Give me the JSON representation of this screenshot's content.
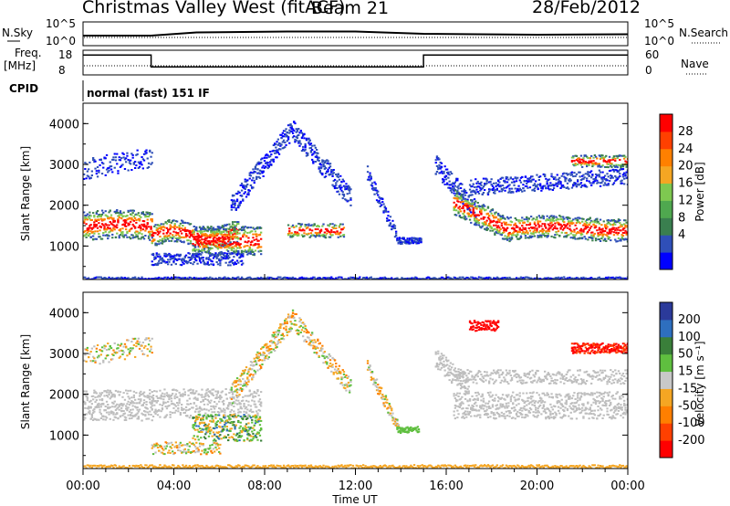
{
  "header": {
    "title": "Christmas Valley West (fitACF)",
    "beam": "Beam 21",
    "date": "28/Feb/2012"
  },
  "strip_labels": {
    "nsky": "N.Sky",
    "nsky_ticks": [
      "10^5",
      "10^0"
    ],
    "nsearch": "N.Search",
    "nsearch_ticks": [
      "10^5",
      "10^0"
    ],
    "freq": "Freq.",
    "freq_unit": "[MHz]",
    "freq_ticks": [
      "18",
      "8"
    ],
    "nave": "Nave",
    "nave_ticks": [
      "60",
      "0"
    ],
    "cpid": "CPID",
    "cpid_text": "normal (fast) 151 IF"
  },
  "colors": {
    "power_scale": [
      "#0000ff",
      "#2f4fb8",
      "#3a7f4f",
      "#4fa84f",
      "#7ec850",
      "#f5a623",
      "#ff8000",
      "#ff4000",
      "#ff0000"
    ],
    "velocity_scale": [
      "#2b3a9a",
      "#2e6fbf",
      "#3a7f3a",
      "#5fbf3f",
      "#c8c8c8",
      "#f5a623",
      "#ff7f00",
      "#ff4000",
      "#ff0000"
    ],
    "ground_scatter": "#bebebe"
  },
  "chart_data": [
    {
      "type": "line",
      "title": "",
      "xlabel": "",
      "ylabel": "N.Sky",
      "x": [
        "00:00",
        "03:00",
        "05:00",
        "09:00",
        "12:00",
        "15:00",
        "20:00",
        "24:00"
      ],
      "series": [
        {
          "values": [
            2,
            2,
            2.7,
            2.9,
            2.9,
            2.4,
            2.2,
            2.3
          ]
        }
      ],
      "ylim": [
        0,
        5
      ]
    },
    {
      "type": "line",
      "title": "",
      "xlabel": "",
      "ylabel": "Freq. [MHz]",
      "x": [
        "00:00",
        "03:00",
        "03:00",
        "15:00",
        "15:00",
        "24:00"
      ],
      "series": [
        {
          "values": [
            16,
            16,
            11,
            11,
            16,
            16
          ]
        }
      ],
      "ylim": [
        8,
        18
      ]
    },
    {
      "type": "heatmap",
      "title": "",
      "xlabel": "",
      "ylabel": "Slant Range [km]",
      "xlim": [
        0,
        24
      ],
      "ylim": [
        180,
        4500
      ],
      "colorbar_label": "Power [dB]",
      "colorbar_ticks": [
        "4",
        "8",
        "12",
        "16",
        "20",
        "24",
        "28"
      ]
    },
    {
      "type": "heatmap",
      "title": "",
      "xlabel": "Time UT",
      "ylabel": "Slant Range [km]",
      "xlim": [
        0,
        24
      ],
      "ylim": [
        180,
        4500
      ],
      "x_ticks": [
        "00:00",
        "04:00",
        "08:00",
        "12:00",
        "16:00",
        "20:00",
        "00:00"
      ],
      "y_ticks": [
        "1000",
        "2000",
        "3000",
        "4000"
      ],
      "colorbar_label": "Velocity [m s⁻¹]",
      "colorbar_ticks": [
        "200",
        "100",
        "50",
        "15",
        "-15",
        "-50",
        "-100",
        "-200"
      ]
    }
  ]
}
